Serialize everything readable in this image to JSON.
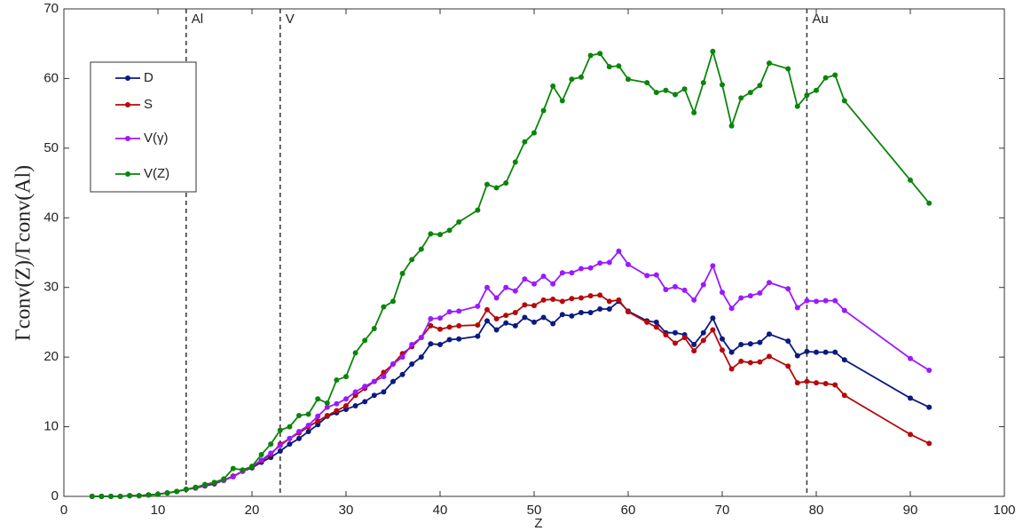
{
  "chart_data": {
    "type": "line",
    "xlabel": "Z",
    "ylabel": "Γconv(Z)/Γconv(Al)",
    "xlim": [
      0,
      100
    ],
    "ylim": [
      0,
      70
    ],
    "xticks": [
      0,
      10,
      20,
      30,
      40,
      50,
      60,
      70,
      80,
      90,
      100
    ],
    "yticks": [
      0,
      10,
      20,
      30,
      40,
      50,
      60,
      70
    ],
    "grid": false,
    "legend": "upper left",
    "vlines": [
      {
        "x": 13,
        "label": "Al"
      },
      {
        "x": 23,
        "label": "V"
      },
      {
        "x": 79,
        "label": "Au"
      }
    ],
    "x": [
      3,
      4,
      5,
      6,
      7,
      8,
      9,
      10,
      11,
      12,
      13,
      14,
      15,
      16,
      17,
      18,
      19,
      20,
      21,
      22,
      23,
      24,
      25,
      26,
      27,
      28,
      29,
      30,
      31,
      32,
      33,
      34,
      35,
      36,
      37,
      38,
      39,
      40,
      41,
      42,
      44,
      45,
      46,
      47,
      48,
      49,
      50,
      51,
      52,
      53,
      54,
      55,
      56,
      57,
      58,
      59,
      60,
      62,
      63,
      64,
      65,
      66,
      67,
      68,
      69,
      70,
      71,
      72,
      73,
      74,
      75,
      77,
      78,
      79,
      80,
      81,
      82,
      83,
      90,
      92
    ],
    "series": [
      {
        "name": "D",
        "color": "#0b1a80",
        "values": [
          0,
          0,
          0,
          0,
          0.1,
          0.1,
          0.2,
          0.3,
          0.5,
          0.7,
          1.0,
          1.2,
          1.5,
          1.8,
          2.3,
          2.9,
          3.6,
          4.1,
          4.9,
          5.6,
          6.5,
          7.5,
          8.3,
          9.3,
          10.3,
          11.5,
          12.0,
          12.5,
          13.0,
          13.6,
          14.5,
          15.0,
          16.5,
          17.5,
          19.0,
          20.0,
          21.9,
          21.8,
          22.5,
          22.6,
          23.0,
          25.2,
          23.9,
          24.9,
          24.5,
          25.7,
          25.0,
          25.7,
          24.8,
          26.1,
          25.9,
          26.4,
          26.4,
          26.9,
          26.9,
          28.0,
          26.6,
          25.2,
          25.0,
          23.5,
          23.5,
          23.2,
          21.8,
          23.5,
          25.6,
          22.6,
          20.7,
          21.8,
          21.9,
          22.1,
          23.3,
          22.3,
          20.2,
          20.8,
          20.7,
          20.7,
          20.7,
          19.6,
          14.1,
          12.8
        ]
      },
      {
        "name": "S",
        "color": "#b50a0a",
        "values": [
          0,
          0,
          0,
          0,
          0.1,
          0.1,
          0.2,
          0.3,
          0.5,
          0.7,
          1.0,
          1.2,
          1.6,
          1.9,
          2.3,
          2.9,
          3.6,
          4.2,
          5.1,
          6.0,
          7.5,
          8.3,
          9.1,
          10.0,
          10.8,
          11.6,
          12.3,
          13.0,
          14.5,
          15.5,
          16.5,
          17.8,
          19.0,
          20.5,
          21.5,
          22.8,
          24.5,
          24.0,
          24.3,
          24.5,
          24.6,
          26.8,
          25.5,
          26.0,
          26.4,
          27.5,
          27.4,
          28.2,
          28.3,
          28.0,
          28.4,
          28.5,
          28.8,
          28.9,
          28.0,
          28.2,
          26.5,
          25.0,
          24.3,
          23.2,
          22.0,
          22.8,
          20.9,
          22.4,
          23.9,
          21.0,
          18.3,
          19.4,
          19.2,
          19.3,
          20.1,
          18.7,
          16.3,
          16.5,
          16.3,
          16.2,
          16.0,
          14.5,
          8.9,
          7.6
        ]
      },
      {
        "name": "V(γ)",
        "color": "#9a1aff",
        "values": [
          0,
          0,
          0,
          0,
          0.1,
          0.1,
          0.2,
          0.3,
          0.5,
          0.7,
          1.0,
          1.2,
          1.6,
          2.0,
          2.3,
          2.8,
          3.6,
          4.3,
          5.2,
          6.2,
          7.3,
          8.3,
          9.3,
          10.2,
          11.5,
          12.8,
          13.3,
          14.0,
          15.0,
          15.8,
          16.5,
          17.2,
          19.0,
          20.0,
          21.8,
          22.8,
          25.5,
          25.6,
          26.5,
          26.6,
          27.3,
          30.0,
          28.5,
          30.0,
          29.5,
          31.2,
          30.5,
          31.6,
          30.5,
          32.1,
          32.1,
          32.7,
          32.8,
          33.5,
          33.6,
          35.2,
          33.3,
          31.7,
          31.8,
          29.7,
          30.1,
          29.6,
          28.2,
          30.4,
          33.1,
          29.3,
          27.0,
          28.5,
          28.8,
          29.2,
          30.7,
          29.8,
          27.1,
          28.1,
          28.0,
          28.1,
          28.1,
          26.7,
          19.8,
          18.1
        ]
      },
      {
        "name": "V(Z)",
        "color": "#0a850a",
        "values": [
          0,
          0,
          0,
          0,
          0.1,
          0.1,
          0.2,
          0.3,
          0.5,
          0.7,
          1.0,
          1.3,
          1.7,
          2.0,
          2.5,
          4.0,
          3.8,
          4.3,
          6.0,
          7.5,
          9.5,
          10.0,
          11.6,
          11.8,
          14.0,
          13.4,
          16.7,
          17.2,
          20.6,
          22.4,
          24.1,
          27.2,
          28.0,
          32.0,
          34.0,
          35.5,
          37.7,
          37.6,
          38.2,
          39.4,
          41.1,
          44.8,
          44.3,
          45.0,
          48.0,
          50.9,
          52.2,
          55.4,
          58.9,
          56.8,
          59.9,
          60.2,
          63.3,
          63.6,
          61.7,
          61.8,
          59.9,
          59.4,
          58.0,
          58.3,
          57.7,
          58.5,
          55.1,
          59.4,
          63.9,
          59.1,
          53.2,
          57.2,
          58.0,
          59.0,
          62.2,
          61.4,
          56.0,
          57.6,
          58.3,
          60.1,
          60.5,
          56.8,
          45.4,
          42.1
        ]
      }
    ]
  }
}
